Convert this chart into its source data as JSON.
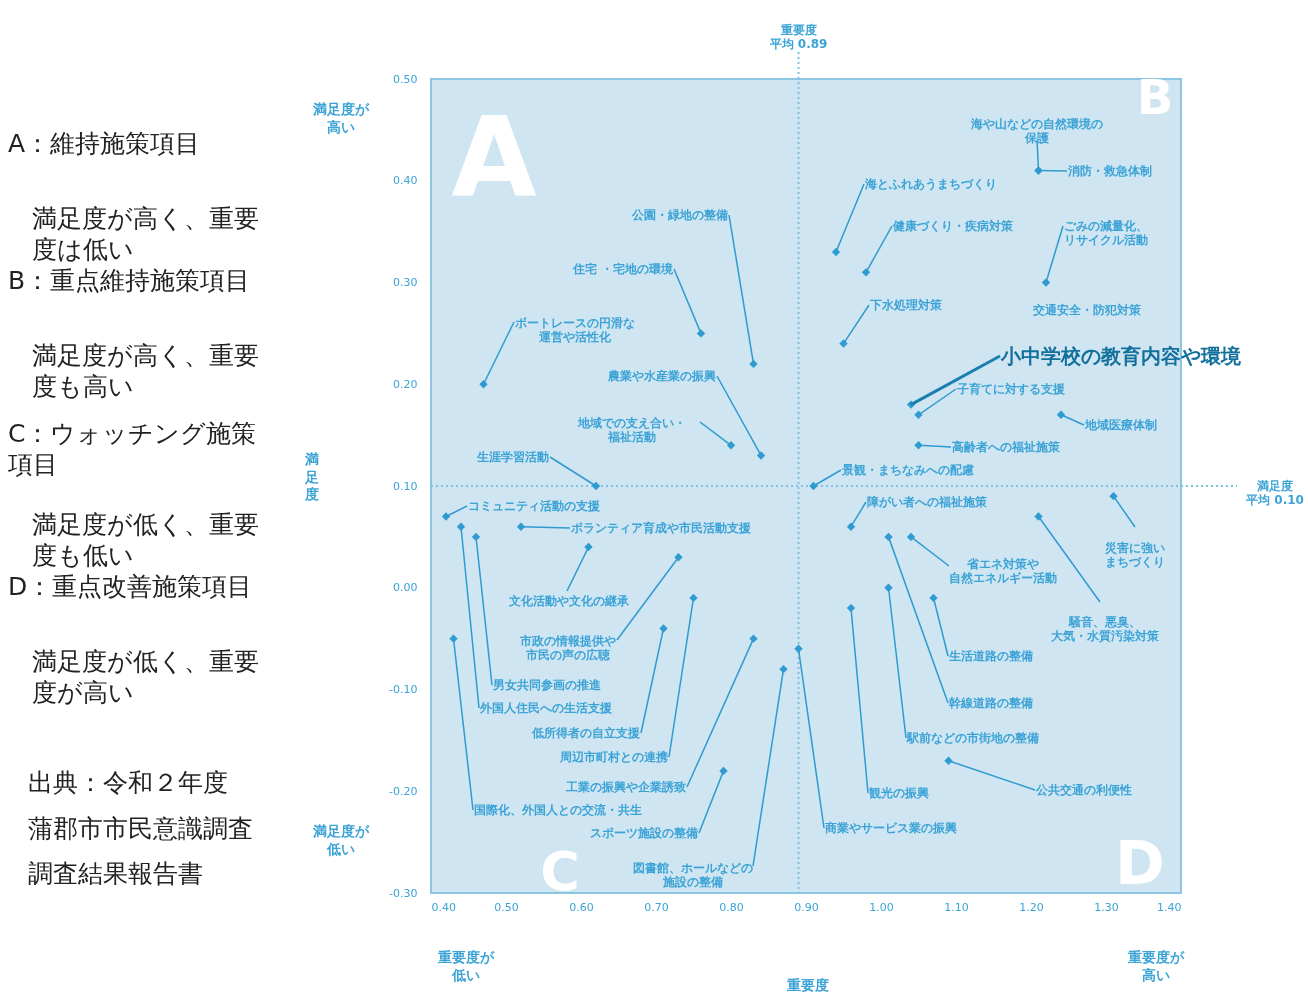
{
  "chart_data": {
    "type": "scatter",
    "xlabel": "重要度",
    "x": [
      0.83,
      0.76,
      0.47,
      0.84,
      0.8,
      0.62,
      1.21,
      1.21,
      0.94,
      0.98,
      1.22,
      0.95,
      null,
      1.04,
      1.05,
      1.24,
      1.05,
      0.91,
      0.42,
      0.44,
      0.46,
      0.52,
      0.61,
      0.73,
      0.75,
      0.71,
      0.43,
      0.83,
      0.87,
      0.79,
      0.89,
      0.96,
      1.01,
      1.04,
      1.21,
      1.31,
      1.07,
      1.01,
      0.96,
      1.09
    ],
    "series": [
      {
        "color": "#2f9bd0",
        "values": [
          0.22,
          0.25,
          0.2,
          0.13,
          0.14,
          0.1,
          0.41,
          0.41,
          0.33,
          0.31,
          0.3,
          0.24,
          null,
          0.18,
          0.17,
          0.17,
          0.14,
          0.1,
          0.07,
          0.06,
          0.05,
          0.06,
          0.04,
          0.03,
          -0.01,
          -0.04,
          -0.05,
          -0.05,
          -0.08,
          -0.18,
          -0.06,
          0.06,
          0.05,
          0.05,
          0.07,
          0.09,
          -0.01,
          0.0,
          -0.02,
          -0.17
        ],
        "value_labels": [
          "公園・緑地の整備",
          "住宅 ・宅地の環境",
          "ボートレースの円滑な運営や活性化",
          "農業や水産業の振興",
          "地域での支え合い・福祉活動",
          "生涯学習活動",
          "海や山などの自然環境の保護",
          "消防・救急体制",
          "海とふれあうまちづくり",
          "健康づくり・疾病対策",
          "ごみの減量化、リサイクル活動",
          "下水処理対策",
          "交通安全・防犯対策",
          null,
          "子育てに対する支援",
          "地域医療体制",
          "高齢者への福祉施策",
          "景観・まちなみへの配慮",
          "コミュニティ活動の支援",
          "外国人住民への生活支援",
          "男女共同参画の推進",
          "ボランティア育成や市民活動支援",
          "文化活動や文化の継承",
          "市政の情報提供や市民の声の広聴",
          "周辺市町村との連携",
          "低所得者の自立支援",
          "国際化、外国人との交流・共生",
          "工業の振興や企業誘致",
          "図書館、ホールなどの施設の整備",
          "スポーツ施設の整備",
          "商業やサービス業の振興",
          "障がい者への福祉施策",
          "幹線道路の整備",
          "省エネ対策や自然エネルギー活動",
          "騒音、悪臭、大気・水質汚染対策",
          "災害に強いまちづくり",
          "生活道路の整備",
          "駅前などの市街地の整備",
          "観光の振興",
          "公共交通の利便性"
        ]
      }
    ],
    "marker": "diamond",
    "grid": false,
    "xlim": [
      0.4,
      1.4
    ],
    "ylim": [
      -0.3,
      0.5
    ],
    "xticks": [
      {
        "value": 0.4,
        "label": "0.40"
      },
      {
        "value": 0.5,
        "label": "0.50"
      },
      {
        "value": 0.6,
        "label": "0.60"
      },
      {
        "value": 0.7,
        "label": "0.70"
      },
      {
        "value": 0.8,
        "label": "0.80"
      },
      {
        "value": 0.9,
        "label": "0.90"
      },
      {
        "value": 1.0,
        "label": "1.00"
      },
      {
        "value": 1.1,
        "label": "1.10"
      },
      {
        "value": 1.2,
        "label": "1.20"
      },
      {
        "value": 1.3,
        "label": "1.30"
      },
      {
        "value": 1.4,
        "label": "1.40"
      }
    ],
    "yticks": [
      {
        "value": -0.3,
        "label": "-0.30"
      },
      {
        "value": -0.2,
        "label": "-0.20"
      },
      {
        "value": -0.1,
        "label": "-0.10"
      },
      {
        "value": 0,
        "label": "0.00"
      },
      {
        "value": 0.1,
        "label": "0.10"
      },
      {
        "value": 0.2,
        "label": "0.20"
      },
      {
        "value": 0.3,
        "label": "0.30"
      },
      {
        "value": 0.4,
        "label": "0.40"
      },
      {
        "value": 0.5,
        "label": "0.50"
      }
    ],
    "ref_lines": [
      {
        "axis": "x",
        "value": 0.89,
        "label": "重要度平均 0.89",
        "color": "#7fbfe0",
        "line_style": "dotted"
      },
      {
        "axis": "y",
        "value": 0.1,
        "label": "満足度平均 0.10",
        "color": "#7fbfe0",
        "line_style": "dotted"
      }
    ],
    "annotations": [
      "A：維持施策項目",
      "満足度が高く、重要度は低い",
      "B：重点維持施策項目",
      "満足度が高く、重要度も高い",
      "C：ウォッチング施策項目",
      "満足度が低く、重要度も低い",
      "D：重点改善施策項目",
      "満足度が低く、重要度が高い",
      "出典：令和２年度",
      "蒲郡市市民意識調査",
      "調査結果報告書",
      "満足度が高い",
      "満足度が低い",
      "重要度が低い",
      "重要度が高い",
      "A",
      "B",
      "C",
      "D",
      {
        "text": "小中学校の教育内容や環境",
        "x": 1.04,
        "y": 0.18
      },
      "満足度"
    ]
  }
}
